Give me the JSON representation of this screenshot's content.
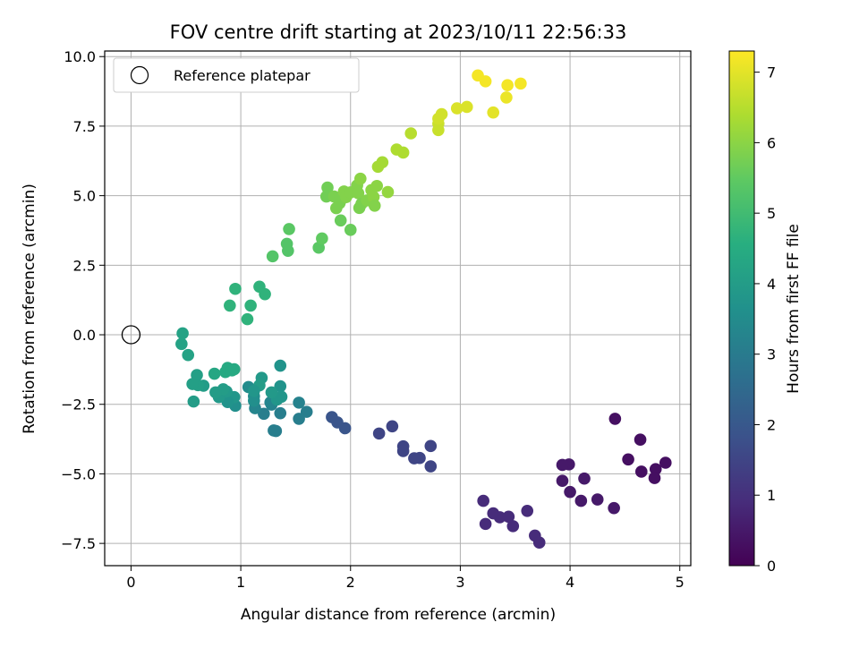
{
  "chart_data": {
    "type": "scatter",
    "title": "FOV centre drift starting at 2023/10/11 22:56:33",
    "xlabel": "Angular distance from reference (arcmin)",
    "ylabel": "Rotation from reference (arcmin)",
    "xlim": [
      -0.24,
      5.1
    ],
    "ylim": [
      -8.3,
      10.2
    ],
    "xticks": [
      0,
      1,
      2,
      3,
      4,
      5
    ],
    "xtick_labels": [
      "0",
      "1",
      "2",
      "3",
      "4",
      "5"
    ],
    "yticks": [
      -7.5,
      -5.0,
      -2.5,
      0.0,
      2.5,
      5.0,
      7.5,
      10.0
    ],
    "ytick_labels": [
      "−7.5",
      "−5.0",
      "−2.5",
      "0.0",
      "2.5",
      "5.0",
      "7.5",
      "10.0"
    ],
    "grid": true,
    "legend": {
      "placement": "top-left",
      "entries": [
        "Reference platepar"
      ]
    },
    "reference_point": {
      "x": 0,
      "y": 0,
      "label": "Reference platepar"
    },
    "colorbar": {
      "label": "Hours from first FF file",
      "colormap": "viridis",
      "range": [
        0,
        7.3
      ],
      "ticks": [
        0,
        1,
        2,
        3,
        4,
        5,
        6,
        7
      ],
      "tick_labels": [
        "0",
        "1",
        "2",
        "3",
        "4",
        "5",
        "6",
        "7"
      ]
    },
    "points": [
      [
        4.41,
        -3.02,
        0.3
      ],
      [
        4.64,
        -3.77,
        0.3
      ],
      [
        4.53,
        -4.48,
        0.3
      ],
      [
        4.65,
        -4.92,
        0.3
      ],
      [
        4.78,
        -4.83,
        0.3
      ],
      [
        4.87,
        -4.6,
        0.3
      ],
      [
        4.77,
        -5.15,
        0.3
      ],
      [
        4.4,
        -6.23,
        0.5
      ],
      [
        4.25,
        -5.92,
        0.5
      ],
      [
        4.1,
        -5.97,
        0.5
      ],
      [
        4.13,
        -5.17,
        0.5
      ],
      [
        3.99,
        -4.66,
        0.5
      ],
      [
        3.93,
        -4.68,
        0.5
      ],
      [
        3.93,
        -5.25,
        0.5
      ],
      [
        4.0,
        -5.65,
        0.5
      ],
      [
        3.61,
        -6.33,
        0.9
      ],
      [
        3.68,
        -7.22,
        0.9
      ],
      [
        3.72,
        -7.47,
        0.9
      ],
      [
        3.48,
        -6.88,
        0.9
      ],
      [
        3.44,
        -6.54,
        0.9
      ],
      [
        3.36,
        -6.56,
        0.9
      ],
      [
        3.3,
        -6.42,
        0.9
      ],
      [
        3.23,
        -6.8,
        0.9
      ],
      [
        3.21,
        -5.97,
        0.9
      ],
      [
        2.73,
        -4.0,
        1.5
      ],
      [
        2.73,
        -4.73,
        1.5
      ],
      [
        2.63,
        -4.43,
        1.5
      ],
      [
        2.58,
        -4.44,
        1.5
      ],
      [
        2.48,
        -4.01,
        1.5
      ],
      [
        2.48,
        -4.18,
        1.5
      ],
      [
        2.38,
        -3.29,
        1.5
      ],
      [
        2.26,
        -3.55,
        1.5
      ],
      [
        1.95,
        -3.36,
        1.9
      ],
      [
        1.88,
        -3.15,
        1.9
      ],
      [
        1.83,
        -2.96,
        1.9
      ],
      [
        1.6,
        -2.77,
        3.1
      ],
      [
        1.53,
        -3.02,
        3.1
      ],
      [
        1.53,
        -2.44,
        3.2
      ],
      [
        1.36,
        -2.82,
        3.1
      ],
      [
        1.3,
        -3.44,
        3.1
      ],
      [
        1.32,
        -3.46,
        3.1
      ],
      [
        1.28,
        -2.51,
        3.2
      ],
      [
        1.27,
        -2.43,
        3.3
      ],
      [
        1.21,
        -2.84,
        3.1
      ],
      [
        1.13,
        -2.64,
        3.3
      ],
      [
        1.07,
        -1.88,
        3.5
      ],
      [
        1.12,
        -2.21,
        3.5
      ],
      [
        1.36,
        -1.11,
        3.7
      ],
      [
        1.36,
        -1.85,
        3.7
      ],
      [
        1.37,
        -2.23,
        3.8
      ],
      [
        1.33,
        -2.33,
        3.8
      ],
      [
        1.28,
        -2.07,
        3.9
      ],
      [
        1.19,
        -1.55,
        3.9
      ],
      [
        1.17,
        -1.82,
        4.0
      ],
      [
        1.12,
        -2.37,
        3.6
      ],
      [
        1.12,
        -2.02,
        3.8
      ],
      [
        0.95,
        -2.55,
        3.6
      ],
      [
        0.94,
        -2.24,
        3.8
      ],
      [
        0.88,
        -2.42,
        3.7
      ],
      [
        0.8,
        -2.24,
        3.9
      ],
      [
        0.87,
        -2.04,
        3.9
      ],
      [
        0.84,
        -1.96,
        4.0
      ],
      [
        0.77,
        -2.07,
        4.0
      ],
      [
        0.66,
        -1.83,
        4.0
      ],
      [
        0.6,
        -1.45,
        4.1
      ],
      [
        0.61,
        -1.81,
        4.1
      ],
      [
        0.56,
        -1.77,
        4.1
      ],
      [
        0.57,
        -2.4,
        4.0
      ],
      [
        0.47,
        0.05,
        4.2
      ],
      [
        0.46,
        -0.33,
        4.2
      ],
      [
        0.52,
        -0.73,
        4.2
      ],
      [
        0.76,
        -1.4,
        4.3
      ],
      [
        0.86,
        -1.34,
        4.4
      ],
      [
        0.88,
        -1.19,
        4.4
      ],
      [
        0.92,
        -1.28,
        4.4
      ],
      [
        0.94,
        -1.24,
        4.4
      ],
      [
        0.9,
        1.05,
        4.7
      ],
      [
        0.95,
        1.65,
        4.7
      ],
      [
        1.06,
        0.56,
        4.7
      ],
      [
        1.09,
        1.05,
        4.7
      ],
      [
        1.17,
        1.73,
        4.7
      ],
      [
        1.22,
        1.46,
        4.7
      ],
      [
        1.29,
        2.82,
        5.3
      ],
      [
        1.42,
        3.27,
        5.3
      ],
      [
        1.43,
        3.02,
        5.3
      ],
      [
        1.44,
        3.8,
        5.4
      ],
      [
        1.71,
        3.13,
        5.4
      ],
      [
        1.74,
        3.46,
        5.5
      ],
      [
        2.0,
        3.77,
        5.6
      ],
      [
        1.91,
        4.11,
        5.6
      ],
      [
        1.78,
        4.97,
        5.7
      ],
      [
        1.79,
        5.29,
        5.7
      ],
      [
        1.85,
        4.97,
        5.8
      ],
      [
        1.87,
        4.55,
        5.8
      ],
      [
        1.9,
        4.73,
        5.8
      ],
      [
        1.93,
        4.91,
        5.8
      ],
      [
        1.94,
        5.15,
        5.9
      ],
      [
        1.96,
        4.95,
        5.9
      ],
      [
        2.0,
        5.12,
        5.9
      ],
      [
        2.06,
        5.37,
        5.9
      ],
      [
        2.09,
        5.61,
        6.0
      ],
      [
        2.07,
        5.09,
        5.9
      ],
      [
        2.08,
        4.56,
        5.8
      ],
      [
        2.1,
        4.71,
        5.8
      ],
      [
        2.15,
        4.83,
        5.9
      ],
      [
        2.19,
        5.2,
        6.0
      ],
      [
        2.21,
        4.95,
        6.0
      ],
      [
        2.22,
        4.64,
        5.9
      ],
      [
        2.24,
        5.35,
        6.0
      ],
      [
        2.34,
        5.13,
        6.1
      ],
      [
        2.25,
        6.04,
        6.3
      ],
      [
        2.29,
        6.2,
        6.3
      ],
      [
        2.42,
        6.66,
        6.4
      ],
      [
        2.48,
        6.55,
        6.4
      ],
      [
        2.55,
        7.24,
        6.5
      ],
      [
        2.8,
        7.36,
        6.7
      ],
      [
        2.8,
        7.59,
        6.7
      ],
      [
        2.8,
        7.77,
        6.8
      ],
      [
        2.83,
        7.93,
        6.8
      ],
      [
        2.97,
        8.14,
        6.9
      ],
      [
        3.06,
        8.19,
        6.9
      ],
      [
        3.3,
        7.99,
        7.0
      ],
      [
        3.16,
        9.32,
        7.2
      ],
      [
        3.23,
        9.11,
        7.2
      ],
      [
        3.42,
        8.53,
        7.1
      ],
      [
        3.43,
        8.97,
        7.2
      ],
      [
        3.55,
        9.03,
        7.2
      ]
    ]
  }
}
